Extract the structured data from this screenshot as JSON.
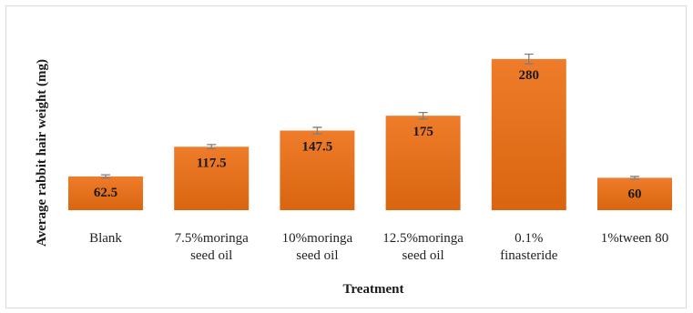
{
  "chart_data": {
    "type": "bar",
    "categories": [
      [
        "Blank"
      ],
      [
        "7.5%moringa",
        "seed oil"
      ],
      [
        "10%moringa",
        "seed oil"
      ],
      [
        "12.5%moringa",
        "seed oil"
      ],
      [
        "0.1%",
        "finasteride"
      ],
      [
        "1%tween 80"
      ]
    ],
    "values": [
      62.5,
      117.5,
      147.5,
      175,
      280,
      60
    ],
    "data_labels": [
      "62.5",
      "117.5",
      "147.5",
      "175",
      "280",
      "60"
    ],
    "error": [
      3,
      4,
      6,
      6,
      9,
      2.5
    ],
    "xlabel": "Treatment",
    "ylabel": "Average rabbit hair weight (mg)",
    "ylim": [
      0,
      300
    ],
    "grid": false,
    "colors": {
      "bar": "#ef7c2a",
      "bar_dark": "#d96510",
      "error_bar": "#7f7f7f"
    }
  }
}
